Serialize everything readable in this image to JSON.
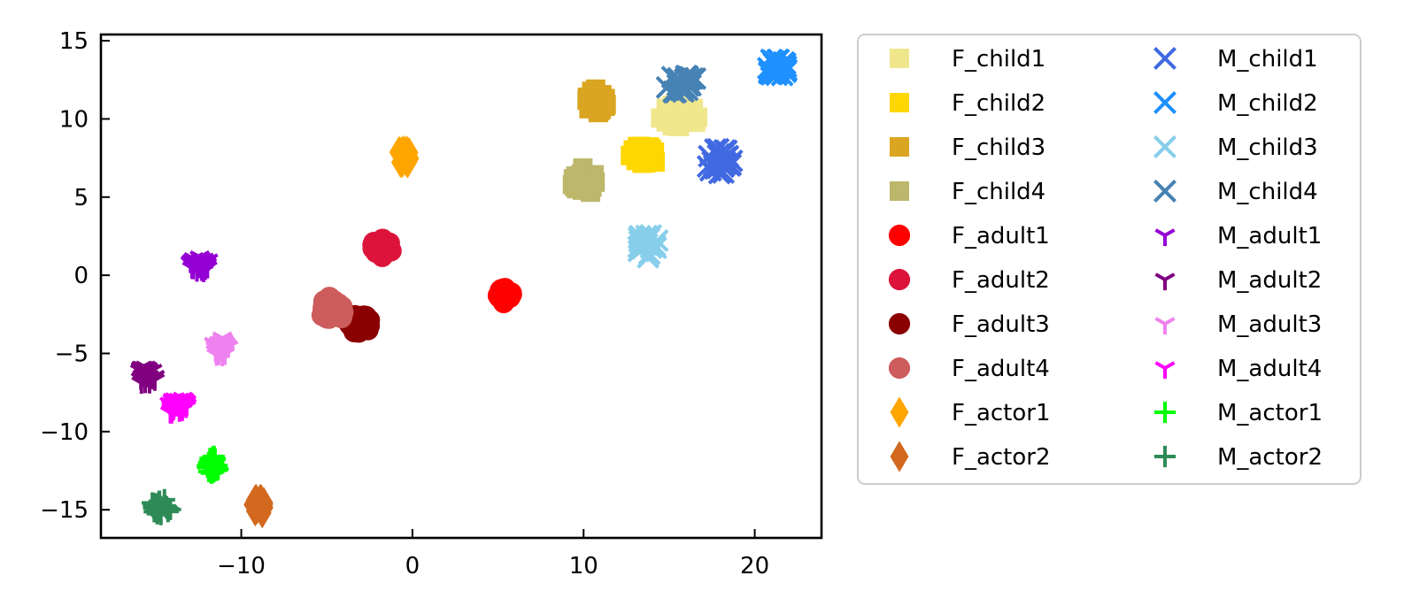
{
  "chart_data": {
    "type": "scatter",
    "title": "",
    "xlabel": "",
    "ylabel": "",
    "xlim": [
      -18.2,
      23.9
    ],
    "ylim": [
      -16.8,
      15.4
    ],
    "xticks": [
      -10,
      0,
      10,
      20
    ],
    "yticks": [
      -15,
      -10,
      -5,
      0,
      5,
      10,
      15
    ],
    "grid": false,
    "legend_position": "outside-right",
    "legend_columns": 2,
    "series": [
      {
        "name": "F_child1",
        "marker": "square",
        "color": "#f0e68c",
        "center": [
          15.5,
          10.2
        ],
        "spread": [
          1.2,
          0.9
        ]
      },
      {
        "name": "F_child2",
        "marker": "square",
        "color": "#ffd700",
        "center": [
          13.5,
          7.7
        ],
        "spread": [
          0.9,
          0.7
        ]
      },
      {
        "name": "F_child3",
        "marker": "square",
        "color": "#daa520",
        "center": [
          10.8,
          11.2
        ],
        "spread": [
          0.7,
          0.8
        ]
      },
      {
        "name": "F_child4",
        "marker": "square",
        "color": "#bdb76b",
        "center": [
          10.0,
          6.0
        ],
        "spread": [
          0.7,
          1.0
        ]
      },
      {
        "name": "F_adult1",
        "marker": "circle",
        "color": "#ff0000",
        "center": [
          5.4,
          -1.3
        ],
        "spread": [
          0.4,
          0.5
        ]
      },
      {
        "name": "F_adult2",
        "marker": "circle",
        "color": "#dc143c",
        "center": [
          -1.8,
          1.8
        ],
        "spread": [
          0.6,
          0.6
        ]
      },
      {
        "name": "F_adult3",
        "marker": "circle",
        "color": "#8b0000",
        "center": [
          -3.1,
          -3.0
        ],
        "spread": [
          0.7,
          0.7
        ]
      },
      {
        "name": "F_adult4",
        "marker": "circle",
        "color": "#cd5c5c",
        "center": [
          -4.8,
          -2.3
        ],
        "spread": [
          0.8,
          0.9
        ]
      },
      {
        "name": "F_actor1",
        "marker": "diamond",
        "color": "#ffa500",
        "center": [
          -0.5,
          7.6
        ],
        "spread": [
          0.4,
          0.6
        ]
      },
      {
        "name": "F_actor2",
        "marker": "diamond",
        "color": "#d2691e",
        "center": [
          -9.0,
          -14.8
        ],
        "spread": [
          0.4,
          0.5
        ]
      },
      {
        "name": "M_child1",
        "marker": "x",
        "color": "#4169e1",
        "center": [
          17.9,
          7.3
        ],
        "spread": [
          0.9,
          0.8
        ]
      },
      {
        "name": "M_child2",
        "marker": "x",
        "color": "#1e90ff",
        "center": [
          21.3,
          13.3
        ],
        "spread": [
          0.6,
          0.6
        ]
      },
      {
        "name": "M_child3",
        "marker": "x",
        "color": "#87ceeb",
        "center": [
          13.7,
          1.9
        ],
        "spread": [
          0.7,
          0.8
        ]
      },
      {
        "name": "M_child4",
        "marker": "x",
        "color": "#4682b4",
        "center": [
          15.7,
          12.2
        ],
        "spread": [
          1.2,
          0.6
        ]
      },
      {
        "name": "M_adult1",
        "marker": "tri",
        "color": "#9400d3",
        "center": [
          -12.4,
          0.7
        ],
        "spread": [
          0.6,
          0.5
        ]
      },
      {
        "name": "M_adult2",
        "marker": "tri",
        "color": "#800080",
        "center": [
          -15.5,
          -6.4
        ],
        "spread": [
          0.6,
          0.6
        ]
      },
      {
        "name": "M_adult3",
        "marker": "tri",
        "color": "#ee82ee",
        "center": [
          -11.2,
          -4.6
        ],
        "spread": [
          0.5,
          0.6
        ]
      },
      {
        "name": "M_adult4",
        "marker": "tri",
        "color": "#ff00ff",
        "center": [
          -13.7,
          -8.4
        ],
        "spread": [
          0.6,
          0.6
        ]
      },
      {
        "name": "M_actor1",
        "marker": "plus",
        "color": "#00ff00",
        "center": [
          -11.7,
          -12.1
        ],
        "spread": [
          0.5,
          0.6
        ]
      },
      {
        "name": "M_actor2",
        "marker": "plus",
        "color": "#2e8b57",
        "center": [
          -14.7,
          -14.8
        ],
        "spread": [
          0.6,
          0.5
        ]
      }
    ]
  }
}
